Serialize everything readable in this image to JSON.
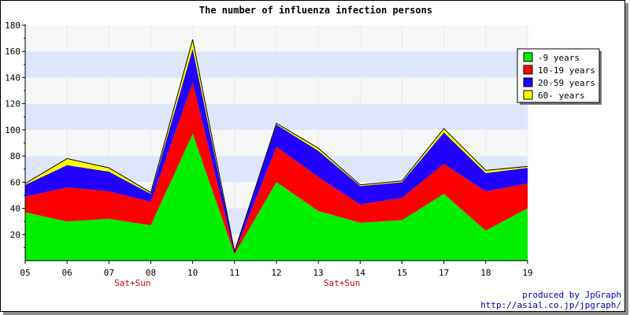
{
  "chart_data": {
    "type": "area",
    "stacked": true,
    "title": "The number of influenza infection persons",
    "xlabel": "",
    "ylabel": "",
    "categories": [
      "05",
      "06",
      "07",
      "08",
      "10",
      "11",
      "12",
      "13",
      "14",
      "15",
      "17",
      "18",
      "19"
    ],
    "category_notes": [
      {
        "category": "07",
        "text": "Sat+Sun"
      },
      {
        "category": "13",
        "text": "Sat+Sun"
      }
    ],
    "ylim": [
      0,
      180
    ],
    "yticks": [
      20,
      40,
      60,
      80,
      100,
      120,
      140,
      160,
      180
    ],
    "grid": "horizontal alternating bands",
    "legend_position": "top-right",
    "series": [
      {
        "name": "-9 years",
        "color": "#00ee00",
        "values": [
          37,
          30,
          32,
          27,
          97,
          5,
          60,
          38,
          29,
          31,
          51,
          23,
          40
        ]
      },
      {
        "name": "10-19 years",
        "color": "#ff0000",
        "values": [
          12,
          26,
          21,
          18,
          39,
          1,
          27,
          26,
          14,
          17,
          23,
          30,
          19
        ]
      },
      {
        "name": "20-59 years",
        "color": "#2200ff",
        "values": [
          9,
          17,
          15,
          6,
          26,
          1,
          17,
          20,
          14,
          12,
          24,
          14,
          12
        ]
      },
      {
        "name": "60- years",
        "color": "#ffff00",
        "values": [
          1,
          5,
          3,
          1,
          7,
          0,
          1,
          2,
          1,
          1,
          3,
          2,
          1
        ]
      }
    ]
  },
  "credits": {
    "line1": "produced by JpGraph",
    "line2": "http://asial.co.jp/jpgraph/"
  }
}
